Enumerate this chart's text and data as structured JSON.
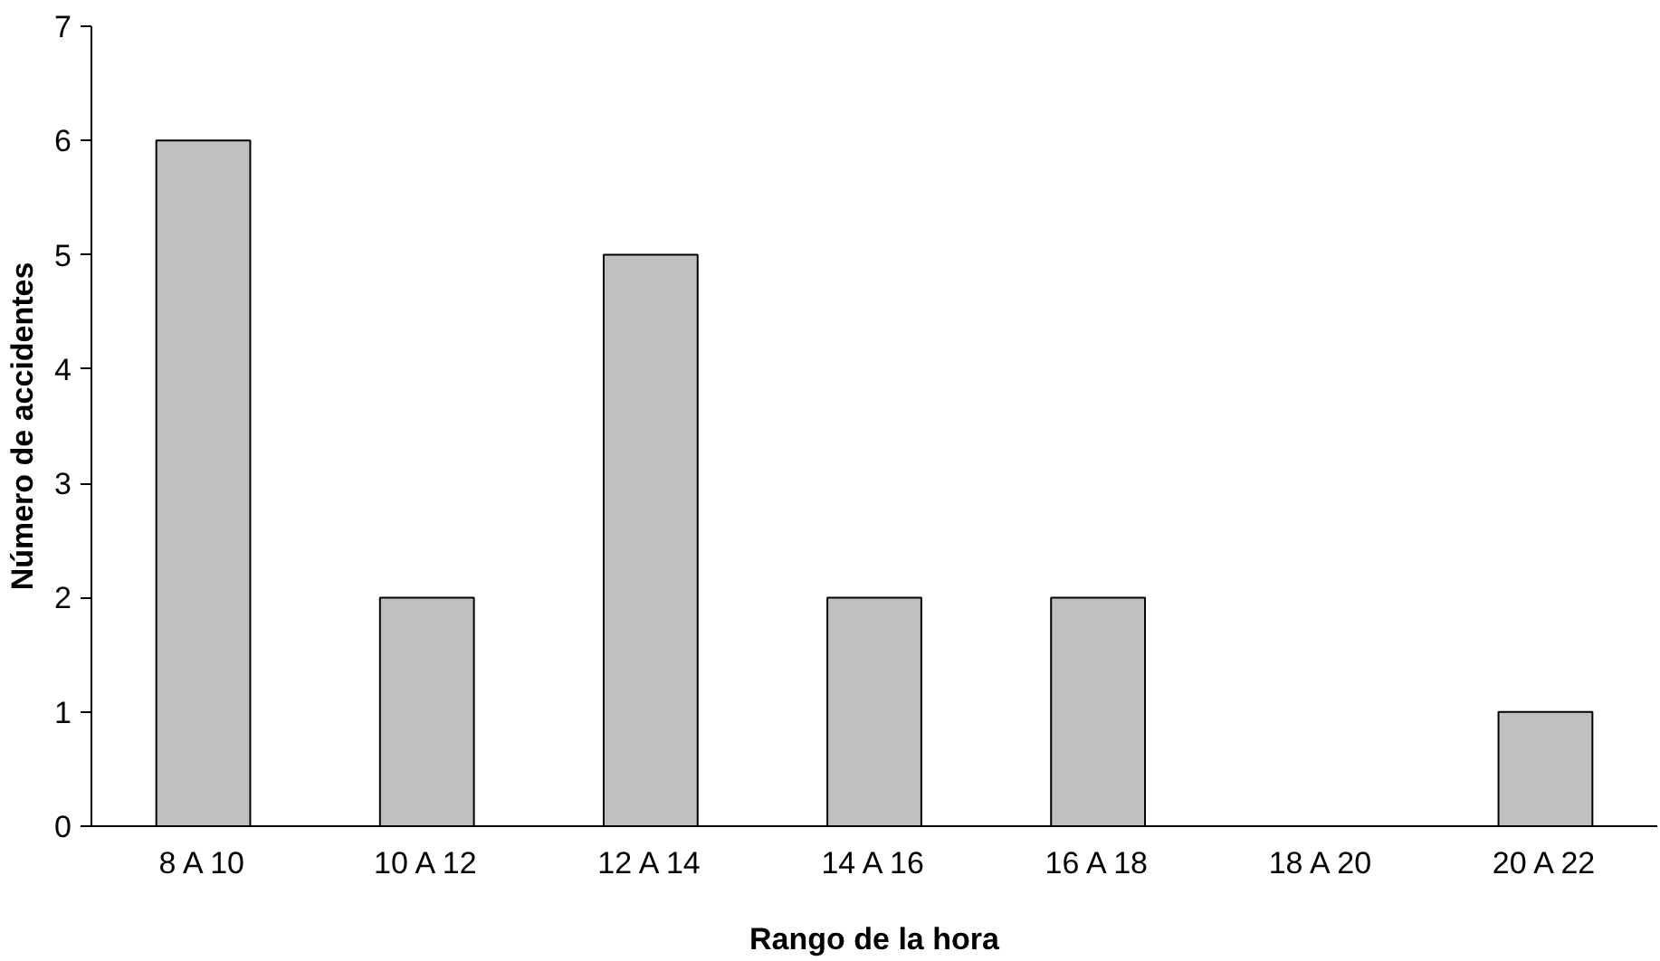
{
  "chart_data": {
    "type": "bar",
    "xlabel": "Rango de la hora",
    "ylabel": "Número de accidentes",
    "categories": [
      "8 A 10",
      "10 A 12",
      "12 A 14",
      "14 A 16",
      "16 A 18",
      "18 A 20",
      "20 A 22"
    ],
    "values": [
      6,
      2,
      5,
      2,
      2,
      0,
      1
    ],
    "color": "#c0c0c0",
    "ylim": [
      0,
      7
    ],
    "yticks": [
      0,
      1,
      2,
      3,
      4,
      5,
      6,
      7
    ],
    "grid": false
  }
}
